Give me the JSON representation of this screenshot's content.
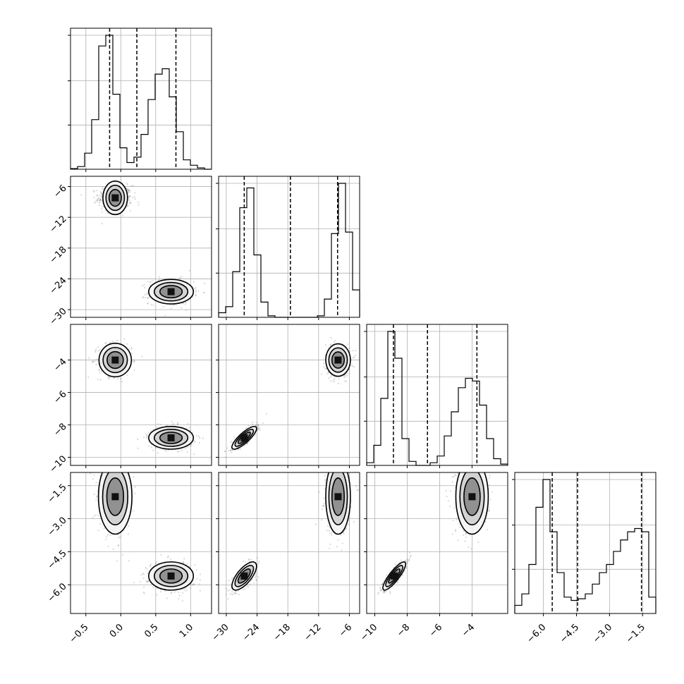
{
  "chart_data": {
    "type": "corner",
    "title": "",
    "grid": true,
    "parameters": [
      {
        "range": [
          -0.72,
          1.3
        ],
        "ticks": [
          -0.5,
          0.0,
          0.5,
          1.0
        ],
        "tick_labels": [
          "−0.5",
          "0.0",
          "0.5",
          "1.0"
        ],
        "quantiles": [
          -0.16,
          0.23,
          0.79
        ],
        "hist": {
          "edges": [
            -0.72,
            -0.619,
            -0.518,
            -0.417,
            -0.316,
            -0.215,
            -0.114,
            -0.013,
            0.088,
            0.189,
            0.29,
            0.391,
            0.492,
            0.593,
            0.694,
            0.795,
            0.896,
            0.997,
            1.098,
            1.199,
            1.3
          ],
          "counts": [
            0.005,
            0.02,
            0.12,
            0.37,
            0.92,
            1.0,
            0.56,
            0.16,
            0.05,
            0.09,
            0.26,
            0.52,
            0.71,
            0.75,
            0.54,
            0.28,
            0.07,
            0.03,
            0.01,
            0.0
          ]
        }
      },
      {
        "range": [
          -31.5,
          -4.0
        ],
        "ticks": [
          -30,
          -24,
          -18,
          -12,
          -6
        ],
        "tick_labels": [
          "−30",
          "−24",
          "−18",
          "−12",
          "−6"
        ],
        "quantiles": [
          -26.5,
          -17.5,
          -8.3
        ],
        "hist": {
          "edges": [
            -31.5,
            -30.125,
            -28.75,
            -27.375,
            -26.0,
            -24.625,
            -23.25,
            -21.875,
            -20.5,
            -19.125,
            -17.75,
            -16.375,
            -15.0,
            -13.625,
            -12.25,
            -10.875,
            -9.5,
            -8.125,
            -6.75,
            -5.375,
            -4.0
          ],
          "counts": [
            0.03,
            0.07,
            0.3,
            0.72,
            0.85,
            0.41,
            0.1,
            0.01,
            0.0,
            0.0,
            0.0,
            0.0,
            0.0,
            0.0,
            0.01,
            0.12,
            0.55,
            0.88,
            0.56,
            0.18
          ]
        }
      },
      {
        "range": [
          -10.5,
          -1.8
        ],
        "ticks": [
          -10,
          -8,
          -6,
          -4
        ],
        "tick_labels": [
          "−10",
          "−8",
          "−6",
          "−4"
        ],
        "quantiles": [
          -8.85,
          -6.75,
          -3.7
        ],
        "hist": {
          "edges": [
            -10.5,
            -10.065,
            -9.63,
            -9.195,
            -8.76,
            -8.325,
            -7.89,
            -7.455,
            -7.02,
            -6.585,
            -6.15,
            -5.715,
            -5.28,
            -4.845,
            -4.41,
            -3.975,
            -3.54,
            -3.105,
            -2.67,
            -2.235,
            -1.8
          ],
          "counts": [
            0.02,
            0.15,
            0.5,
            1.0,
            0.8,
            0.2,
            0.03,
            0.0,
            0.0,
            0.02,
            0.07,
            0.22,
            0.4,
            0.58,
            0.65,
            0.63,
            0.45,
            0.2,
            0.05,
            0.01
          ]
        }
      },
      {
        "range": [
          -7.3,
          -0.9
        ],
        "ticks": [
          -6.0,
          -4.5,
          -3.0,
          -1.5
        ],
        "tick_labels": [
          "−6.0",
          "−4.5",
          "−3.0",
          "−1.5"
        ],
        "quantiles": [
          -5.6,
          -4.45,
          -1.55
        ],
        "hist": {
          "edges": [
            -7.3,
            -6.98,
            -6.66,
            -6.34,
            -6.02,
            -5.7,
            -5.38,
            -5.06,
            -4.74,
            -4.42,
            -4.1,
            -3.78,
            -3.46,
            -3.14,
            -2.82,
            -2.5,
            -2.18,
            -1.86,
            -1.54,
            -1.22,
            -0.9
          ],
          "counts": [
            0.05,
            0.12,
            0.3,
            0.65,
            0.82,
            0.5,
            0.25,
            0.1,
            0.08,
            0.09,
            0.12,
            0.18,
            0.25,
            0.3,
            0.38,
            0.45,
            0.5,
            0.52,
            0.5,
            0.1
          ]
        }
      }
    ],
    "lower_y_ticks": [
      {
        "ticks": [
          -6,
          -12,
          -18,
          -24,
          -30
        ],
        "tick_labels": [
          "−6",
          "−12",
          "−18",
          "−24",
          "−30"
        ]
      },
      {
        "ticks": [
          -4,
          -6,
          -8,
          -10
        ],
        "tick_labels": [
          "−4",
          "−6",
          "−8",
          "−10"
        ]
      },
      {
        "ticks": [
          -1.5,
          -3.0,
          -4.5,
          -6.0
        ],
        "tick_labels": [
          "−1.5",
          "−3.0",
          "−4.5",
          "−6.0"
        ]
      }
    ],
    "modes": [
      {
        "weight": 0.52,
        "mean": [
          -0.08,
          -8.2,
          -4.0,
          -2.0
        ],
        "sd": [
          0.12,
          1.2,
          0.5,
          0.85
        ]
      },
      {
        "weight": 0.48,
        "mean": [
          0.72,
          -26.5,
          -8.8,
          -5.6
        ],
        "sd": [
          0.16,
          1.2,
          0.35,
          0.32
        ]
      }
    ],
    "correlations": [
      {
        "pair": [
          3,
          2
        ],
        "mode": 1,
        "rho": 0.85
      },
      {
        "pair": [
          3,
          1
        ],
        "mode": 1,
        "rho": 0.7
      },
      {
        "pair": [
          2,
          1
        ],
        "mode": 1,
        "rho": 0.82
      }
    ]
  }
}
